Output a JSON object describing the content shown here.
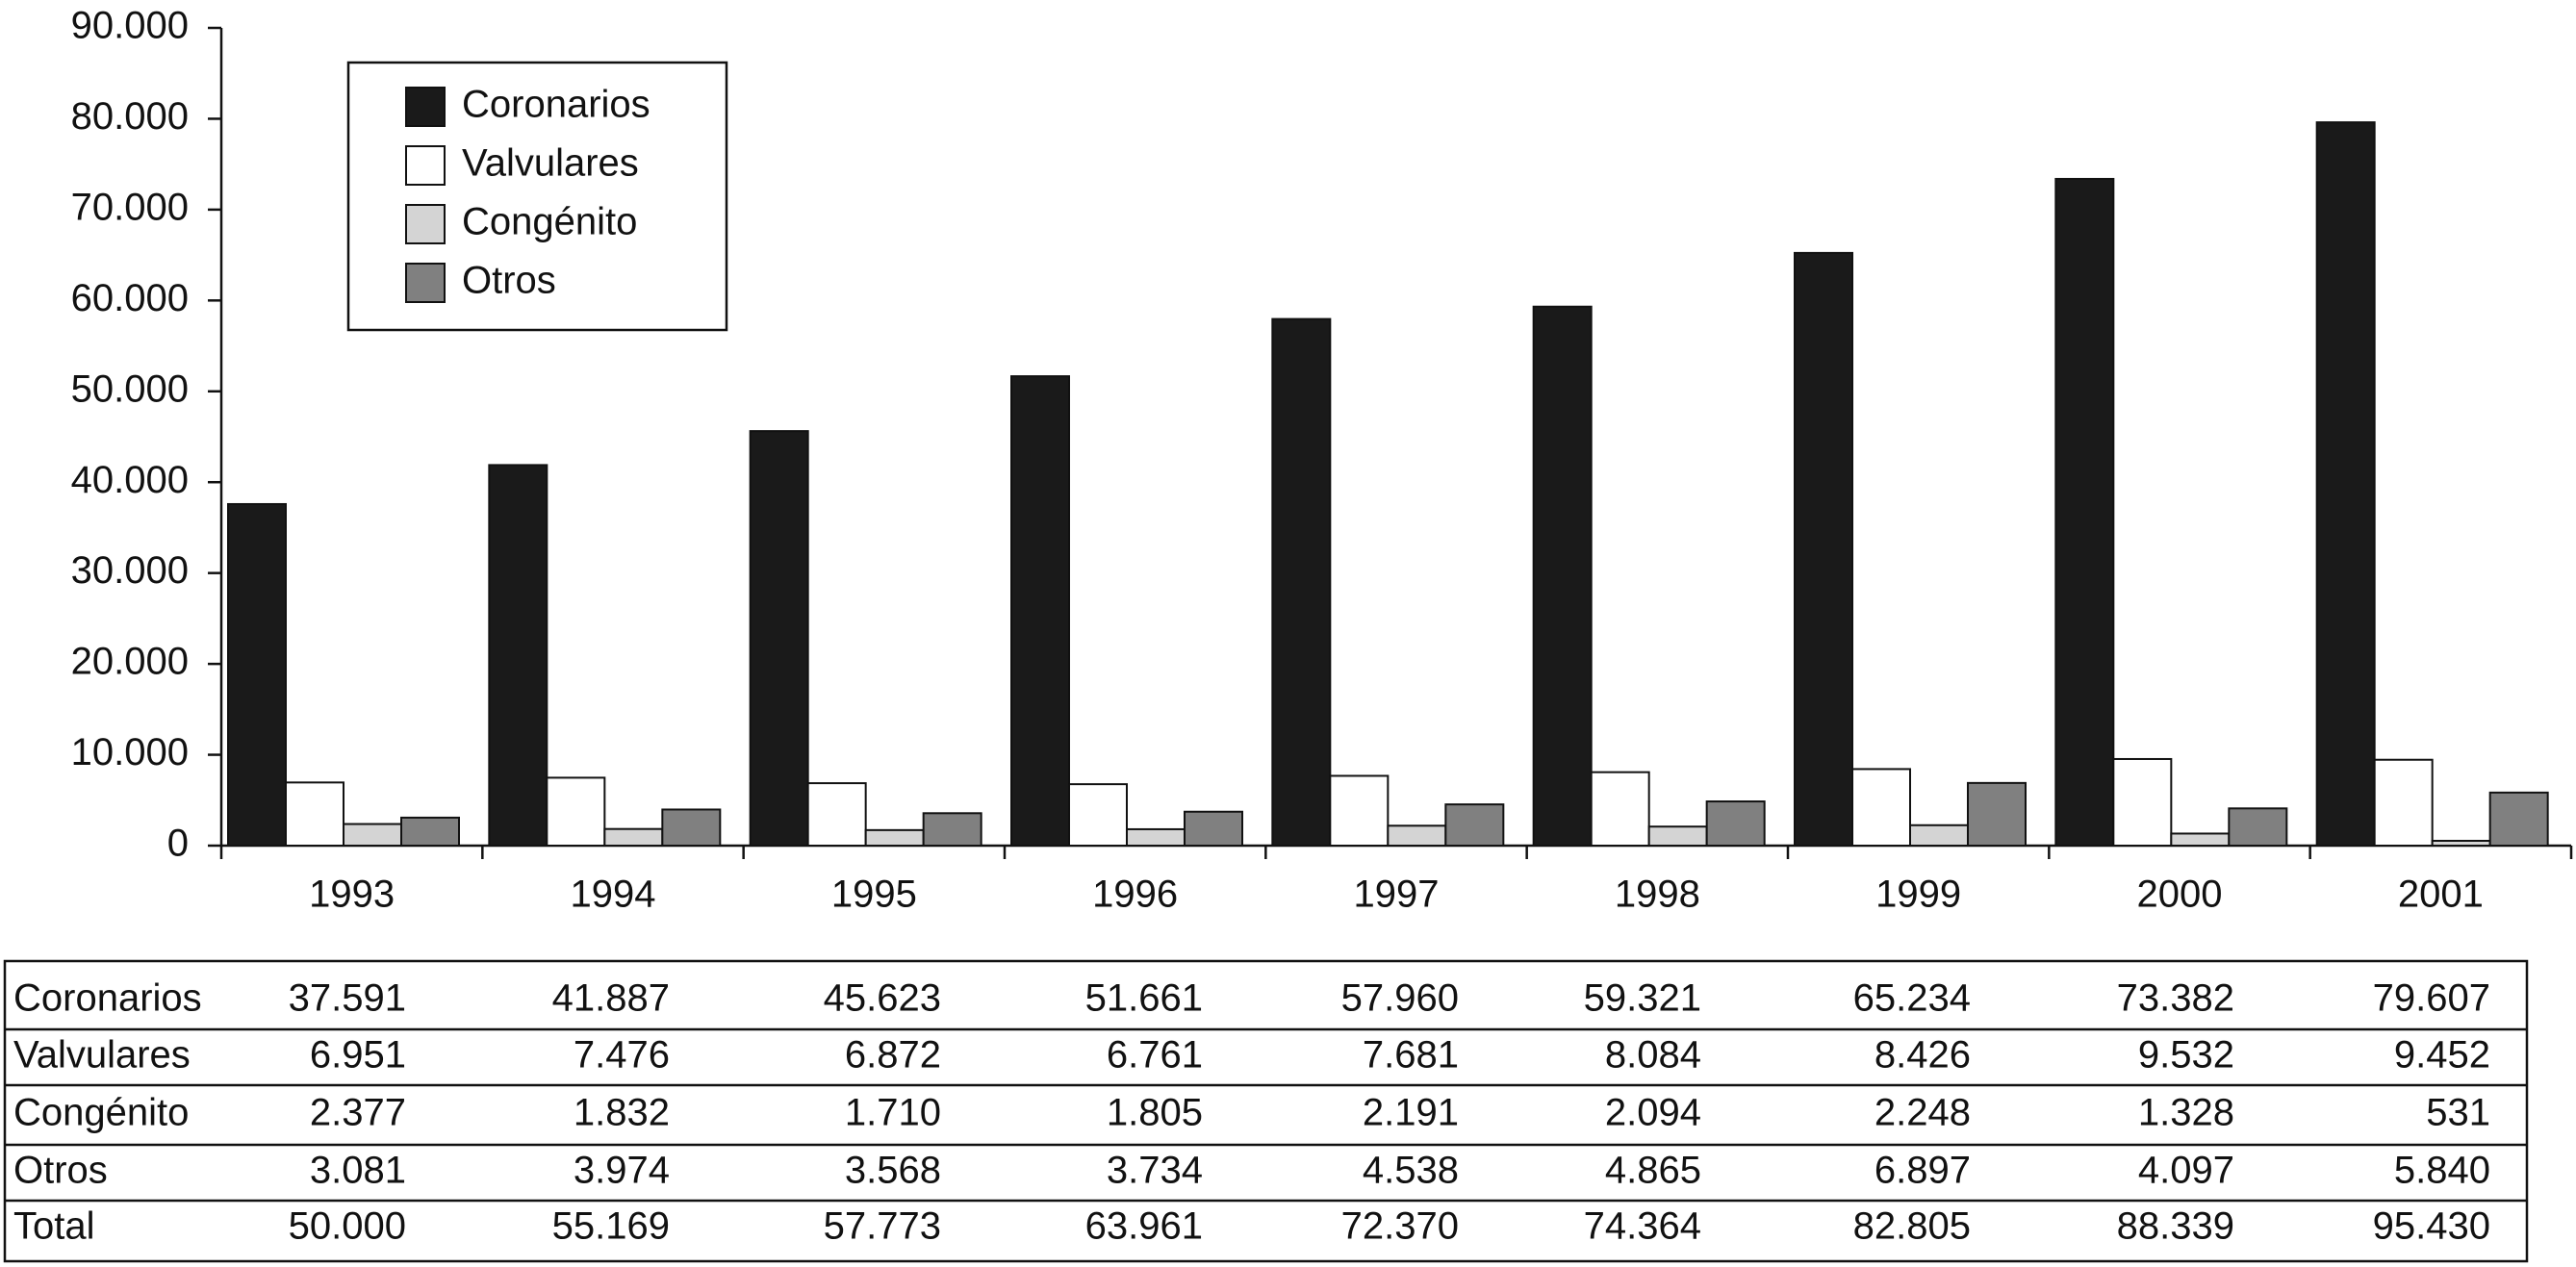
{
  "chart_data": {
    "type": "bar",
    "categories": [
      "1993",
      "1994",
      "1995",
      "1996",
      "1997",
      "1998",
      "1999",
      "2000",
      "2001"
    ],
    "series": [
      {
        "name": "Coronarios",
        "color": "#1a1a1a",
        "values": [
          37591,
          41887,
          45623,
          51661,
          57960,
          59321,
          65234,
          73382,
          79607
        ],
        "value_labels": [
          "37.591",
          "41.887",
          "45.623",
          "51.661",
          "57.960",
          "59.321",
          "65.234",
          "73.382",
          "79.607"
        ]
      },
      {
        "name": "Valvulares",
        "color": "#ffffff",
        "values": [
          6951,
          7476,
          6872,
          6761,
          7681,
          8084,
          8426,
          9532,
          9452
        ],
        "value_labels": [
          "6.951",
          "7.476",
          "6.872",
          "6.761",
          "7.681",
          "8.084",
          "8.426",
          "9.532",
          "9.452"
        ]
      },
      {
        "name": "Congénito",
        "color": "#d4d4d4",
        "values": [
          2377,
          1832,
          1710,
          1805,
          2191,
          2094,
          2248,
          1328,
          531
        ],
        "value_labels": [
          "2.377",
          "1.832",
          "1.710",
          "1.805",
          "2.191",
          "2.094",
          "2.248",
          "1.328",
          "531"
        ]
      },
      {
        "name": "Otros",
        "color": "#808080",
        "values": [
          3081,
          3974,
          3568,
          3734,
          4538,
          4865,
          6897,
          4097,
          5840
        ],
        "value_labels": [
          "3.081",
          "3.974",
          "3.568",
          "3.734",
          "4.538",
          "4.865",
          "6.897",
          "4.097",
          "5.840"
        ]
      }
    ],
    "total_row": {
      "name": "Total",
      "value_labels": [
        "50.000",
        "55.169",
        "57.773",
        "63.961",
        "72.370",
        "74.364",
        "82.805",
        "88.339",
        "95.430"
      ]
    },
    "ylim": [
      0,
      90000
    ],
    "yticks": [
      0,
      {
        "value": 10000,
        "label": "10.000"
      },
      {
        "value": 20000,
        "label": "20.000"
      },
      {
        "value": 30000,
        "label": "30.000"
      },
      {
        "value": 40000,
        "label": "40.000"
      },
      {
        "value": 50000,
        "label": "50.000"
      },
      {
        "value": 60000,
        "label": "60.000"
      },
      {
        "value": 70000,
        "label": "70.000"
      },
      {
        "value": 80000,
        "label": "80.000"
      },
      {
        "value": 90000,
        "label": "90.000"
      }
    ],
    "grid": false,
    "legend": "top-left"
  }
}
